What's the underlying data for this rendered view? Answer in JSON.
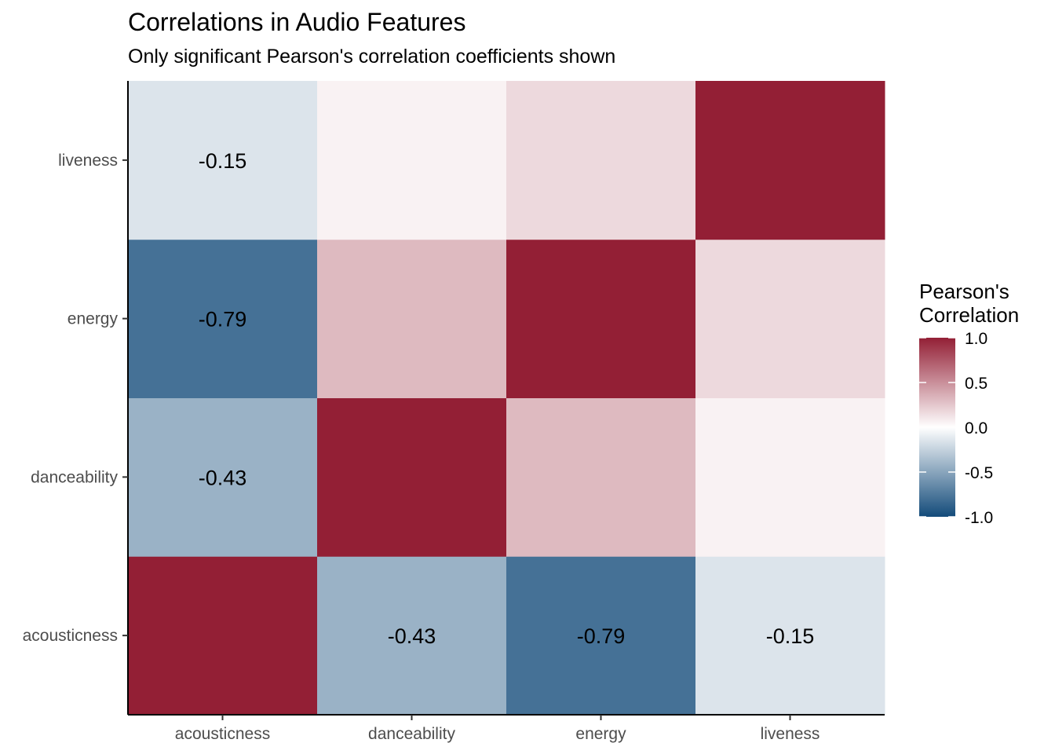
{
  "chart_data": {
    "type": "heatmap",
    "title": "Correlations in Audio Features",
    "subtitle": "Only significant Pearson's correlation coefficients shown",
    "x_categories": [
      "acousticness",
      "danceability",
      "energy",
      "liveness"
    ],
    "y_categories": [
      "acousticness",
      "danceability",
      "energy",
      "liveness"
    ],
    "values": [
      [
        1.0,
        -0.43,
        -0.79,
        -0.15
      ],
      [
        -0.43,
        1.0,
        0.31,
        0.06
      ],
      [
        -0.79,
        0.31,
        1.0,
        0.17
      ],
      [
        -0.15,
        0.06,
        0.17,
        1.0
      ]
    ],
    "cell_labels": [
      [
        "",
        "-0.43",
        "-0.79",
        "-0.15"
      ],
      [
        "-0.43",
        "",
        "",
        ""
      ],
      [
        "-0.79",
        "",
        "",
        ""
      ],
      [
        "-0.15",
        "",
        "",
        ""
      ]
    ],
    "legend": {
      "title_lines": [
        "Pearson's",
        "Correlation"
      ],
      "range": [
        -1.0,
        1.0
      ],
      "ticks": [
        1.0,
        0.5,
        0.0,
        -0.5,
        -1.0
      ],
      "tick_labels": [
        "1.0",
        "0.5",
        "0.0",
        "-0.5",
        "-1.0"
      ],
      "placement": "right"
    },
    "colors": {
      "low": "#134b7a",
      "mid": "#ffffff",
      "high": "#931f35"
    },
    "grid": false
  }
}
